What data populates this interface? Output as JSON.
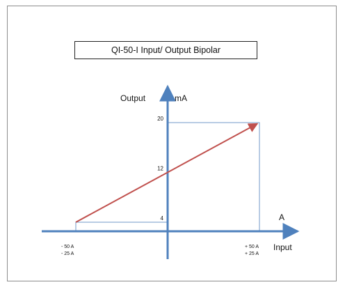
{
  "chart_data": {
    "type": "line",
    "title": "QI-50-I Input/ Output  Bipolar",
    "ylabel": "Output",
    "yunit": "mA",
    "xunit": "A",
    "xlabel": "Input",
    "x_tick_labels": [
      {
        "top": "- 50 A",
        "bottom": "- 25 A"
      },
      {
        "top": "+ 50 A",
        "bottom": "+ 25 A"
      }
    ],
    "y_ticks": [
      4,
      12,
      20
    ],
    "x": [
      -50,
      50
    ],
    "series": [
      {
        "values": [
          4,
          20
        ]
      }
    ],
    "colors": {
      "line": "#c0504d",
      "axis": "#4f81bd",
      "guide": "#4f81bd"
    }
  }
}
